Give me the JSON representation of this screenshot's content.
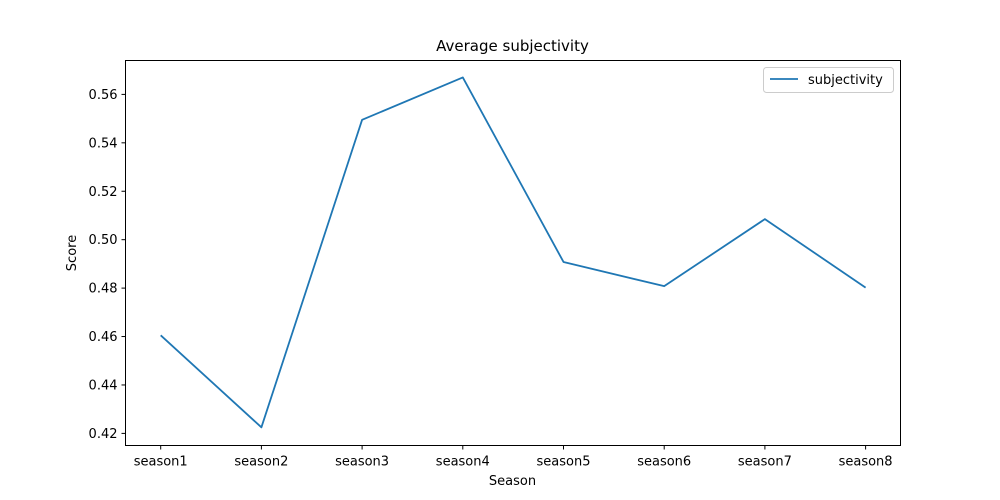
{
  "chart_data": {
    "type": "line",
    "title": "Average subjectivity",
    "xlabel": "Season",
    "ylabel": "Score",
    "categories": [
      "season1",
      "season2",
      "season3",
      "season4",
      "season5",
      "season6",
      "season7",
      "season8"
    ],
    "series": [
      {
        "name": "subjectivity",
        "color": "#1f77b4",
        "values": [
          0.4605,
          0.4225,
          0.5495,
          0.567,
          0.4908,
          0.4808,
          0.5085,
          0.4802
        ]
      }
    ],
    "ylim": [
      0.415,
      0.574
    ],
    "yticks": [
      0.42,
      0.44,
      0.46,
      0.48,
      0.5,
      0.52,
      0.54,
      0.56
    ],
    "ytick_labels": [
      "0.42",
      "0.44",
      "0.46",
      "0.48",
      "0.50",
      "0.52",
      "0.54",
      "0.56"
    ],
    "grid": false,
    "legend_position": "top-right"
  }
}
